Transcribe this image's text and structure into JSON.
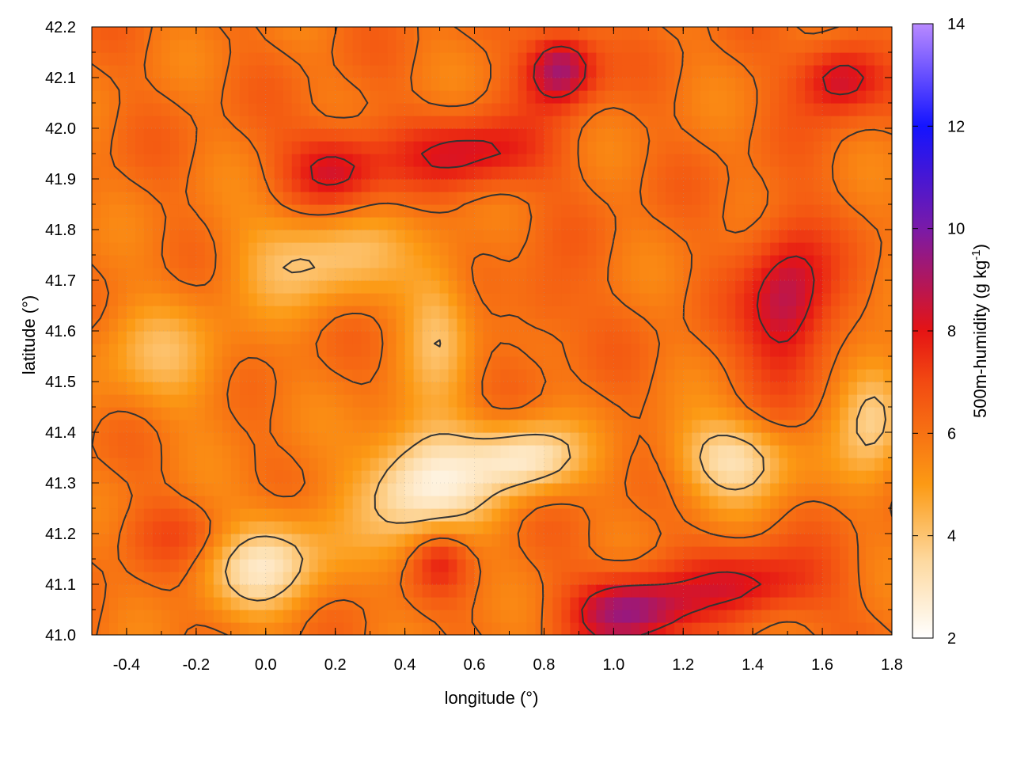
{
  "chart_data": {
    "type": "heatmap",
    "xlabel": "longitude (°)",
    "ylabel": "latitude (°)",
    "colorbar_label": "500m-humidity (g kg",
    "colorbar_label_superscript": "-1",
    "colorbar_label_suffix": ")",
    "xlim": [
      -0.5,
      1.8
    ],
    "ylim": [
      41.0,
      42.2
    ],
    "clim": [
      2,
      14
    ],
    "x_ticks": [
      -0.4,
      -0.2,
      0.0,
      0.2,
      0.4,
      0.6,
      0.8,
      1.0,
      1.2,
      1.4,
      1.6,
      1.8
    ],
    "x_tick_labels": [
      "-0.4",
      "-0.2",
      "0.0",
      "0.2",
      "0.4",
      "0.6",
      "0.8",
      "1.0",
      "1.2",
      "1.4",
      "1.6",
      "1.8"
    ],
    "y_ticks": [
      41.0,
      41.1,
      41.2,
      41.3,
      41.4,
      41.5,
      41.6,
      41.7,
      41.8,
      41.9,
      42.0,
      42.1,
      42.2
    ],
    "y_tick_labels": [
      "41.0",
      "41.1",
      "41.2",
      "41.3",
      "41.4",
      "41.5",
      "41.6",
      "41.7",
      "41.8",
      "41.9",
      "42.0",
      "42.1",
      "42.2"
    ],
    "colorbar_ticks": [
      2,
      4,
      6,
      8,
      10,
      12,
      14
    ],
    "colorbar_tick_labels": [
      "2",
      "4",
      "6",
      "8",
      "10",
      "12",
      "14"
    ],
    "colormap": [
      {
        "value": 2,
        "color": "#ffffff"
      },
      {
        "value": 3.5,
        "color": "#fdd9a0"
      },
      {
        "value": 5,
        "color": "#fc9a14"
      },
      {
        "value": 7,
        "color": "#f24a12"
      },
      {
        "value": 8,
        "color": "#e51414"
      },
      {
        "value": 10,
        "color": "#7a1aa8"
      },
      {
        "value": 12,
        "color": "#1414ff"
      },
      {
        "value": 14,
        "color": "#b98aff"
      }
    ],
    "grid": true,
    "contours": true,
    "features": [
      {
        "x": -0.3,
        "y": 41.55,
        "value": 4.6,
        "sx": 0.22,
        "sy": 0.12
      },
      {
        "x": 0.15,
        "y": 41.75,
        "value": 3.8,
        "sx": 0.22,
        "sy": 0.1
      },
      {
        "x": 0.0,
        "y": 41.15,
        "value": 3.0,
        "sx": 0.18,
        "sy": 0.1
      },
      {
        "x": 0.45,
        "y": 41.3,
        "value": 2.5,
        "sx": 0.18,
        "sy": 0.12
      },
      {
        "x": 0.75,
        "y": 41.35,
        "value": 2.8,
        "sx": 0.15,
        "sy": 0.07
      },
      {
        "x": 1.35,
        "y": 41.35,
        "value": 3.2,
        "sx": 0.18,
        "sy": 0.08
      },
      {
        "x": 1.75,
        "y": 41.45,
        "value": 3.5,
        "sx": 0.1,
        "sy": 0.12
      },
      {
        "x": 0.5,
        "y": 41.62,
        "value": 4.2,
        "sx": 0.1,
        "sy": 0.14
      },
      {
        "x": 0.85,
        "y": 42.12,
        "value": 9.6,
        "sx": 0.1,
        "sy": 0.07
      },
      {
        "x": 0.2,
        "y": 41.92,
        "value": 8.6,
        "sx": 0.14,
        "sy": 0.08
      },
      {
        "x": 0.6,
        "y": 41.95,
        "value": 8.4,
        "sx": 0.2,
        "sy": 0.07
      },
      {
        "x": 1.5,
        "y": 41.65,
        "value": 9.0,
        "sx": 0.12,
        "sy": 0.16
      },
      {
        "x": 1.65,
        "y": 42.1,
        "value": 8.8,
        "sx": 0.12,
        "sy": 0.07
      },
      {
        "x": 1.05,
        "y": 41.05,
        "value": 9.6,
        "sx": 0.16,
        "sy": 0.07
      },
      {
        "x": 1.4,
        "y": 41.1,
        "value": 8.2,
        "sx": 0.2,
        "sy": 0.07
      },
      {
        "x": 0.5,
        "y": 41.15,
        "value": 7.8,
        "sx": 0.08,
        "sy": 0.06
      },
      {
        "x": -0.2,
        "y": 41.2,
        "value": 7.0,
        "sx": 0.2,
        "sy": 0.06
      },
      {
        "x": 0.8,
        "y": 41.65,
        "value": 6.8,
        "sx": 0.1,
        "sy": 0.08
      }
    ],
    "background_value": 6.0
  }
}
